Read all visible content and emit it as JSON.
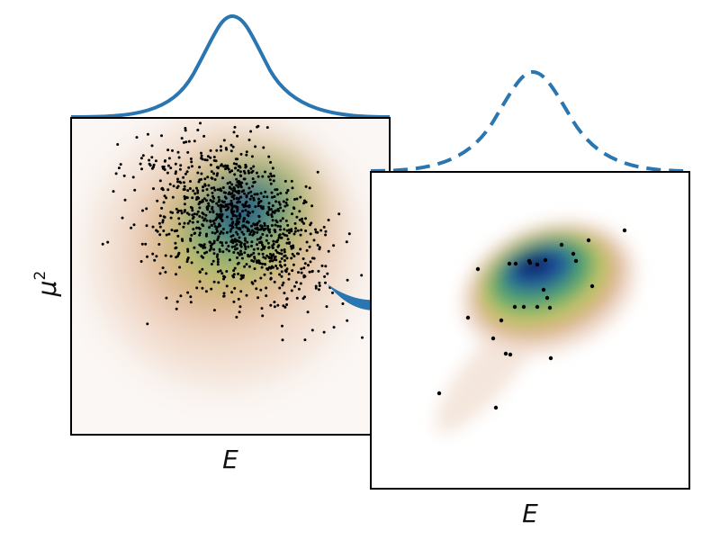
{
  "panels": {
    "left": {
      "xlabel": "E",
      "ylabel": "μ",
      "ylabel_sup": "2",
      "marginal_style": "solid"
    },
    "right": {
      "xlabel": "E",
      "marginal_style": "dashed"
    }
  },
  "colors": {
    "marginal_line": "#2a76b0",
    "arrow": "#2a76b0",
    "point": "#000000",
    "frame": "#000000",
    "density_low": "#fbf7f5",
    "density_peach": "#eed2bf",
    "density_tan": "#d9ae83",
    "density_yellow": "#c3c568",
    "density_green": "#5eaa6a",
    "density_teal": "#2f8483",
    "density_blue": "#1a4f9c",
    "density_navy": "#0b1e63"
  },
  "arrow": {
    "icon": "curved-arrow-icon"
  }
}
